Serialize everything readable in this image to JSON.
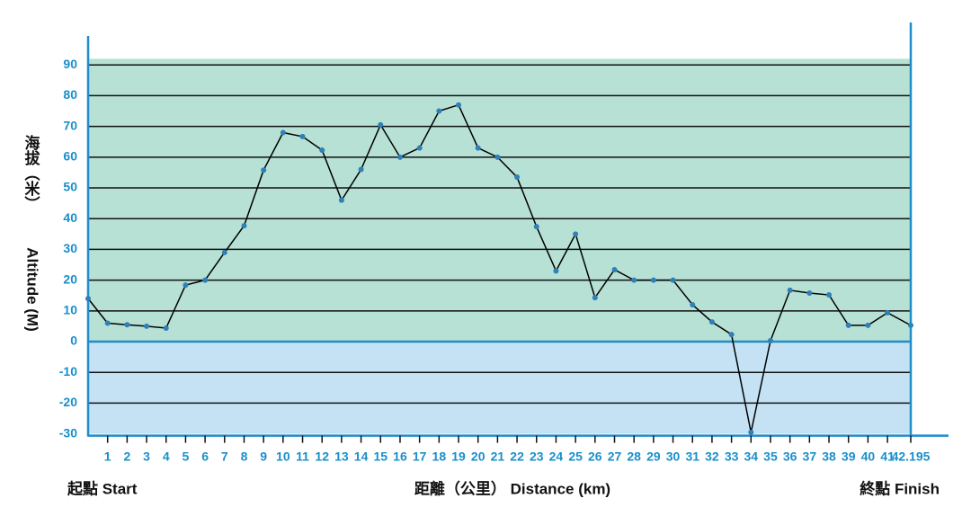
{
  "chart_data": {
    "type": "line",
    "y_label_zh": "海拔（米）",
    "y_label": "Altitude (M)",
    "start_label": "起點 Start",
    "x_label": "距離（公里） Distance (km)",
    "finish_label": "終點 Finish",
    "x": [
      0,
      1,
      2,
      3,
      4,
      5,
      6,
      7,
      8,
      9,
      10,
      11,
      12,
      13,
      14,
      15,
      16,
      17,
      18,
      19,
      20,
      21,
      22,
      23,
      24,
      25,
      26,
      27,
      28,
      29,
      30,
      31,
      32,
      33,
      34,
      35,
      36,
      37,
      38,
      39,
      40,
      41,
      42.195
    ],
    "series": [
      {
        "color": "#000000",
        "marker_color": "#2f7fb8",
        "values": [
          14,
          6,
          5.5,
          5,
          4.4,
          18.4,
          20,
          29,
          37.7,
          55.8,
          68,
          66.7,
          62.3,
          46,
          56,
          70.5,
          60,
          63,
          75,
          77,
          63,
          60,
          53.5,
          37.4,
          23,
          35,
          14.3,
          23.4,
          20,
          20,
          20,
          12,
          6.4,
          2.3,
          -29.5,
          0.3,
          16.7,
          15.8,
          15.2,
          5.3,
          5.3,
          9.4,
          5.3
        ]
      }
    ],
    "xlim": [
      0,
      42.195
    ],
    "xticks": [
      1,
      2,
      3,
      4,
      5,
      6,
      7,
      8,
      9,
      10,
      11,
      12,
      13,
      14,
      15,
      16,
      17,
      18,
      19,
      20,
      21,
      22,
      23,
      24,
      25,
      26,
      27,
      28,
      29,
      30,
      31,
      32,
      33,
      34,
      35,
      36,
      37,
      38,
      39,
      40,
      41,
      42.195
    ],
    "ylim": [
      -30,
      92
    ],
    "yticks": [
      -30,
      -20,
      -10,
      0,
      10,
      20,
      30,
      40,
      50,
      60,
      70,
      80,
      90
    ],
    "grid": true,
    "above_color": "#b6e1d4",
    "below_color": "#c5e2f4",
    "axis_color": "#1f8dc9"
  }
}
